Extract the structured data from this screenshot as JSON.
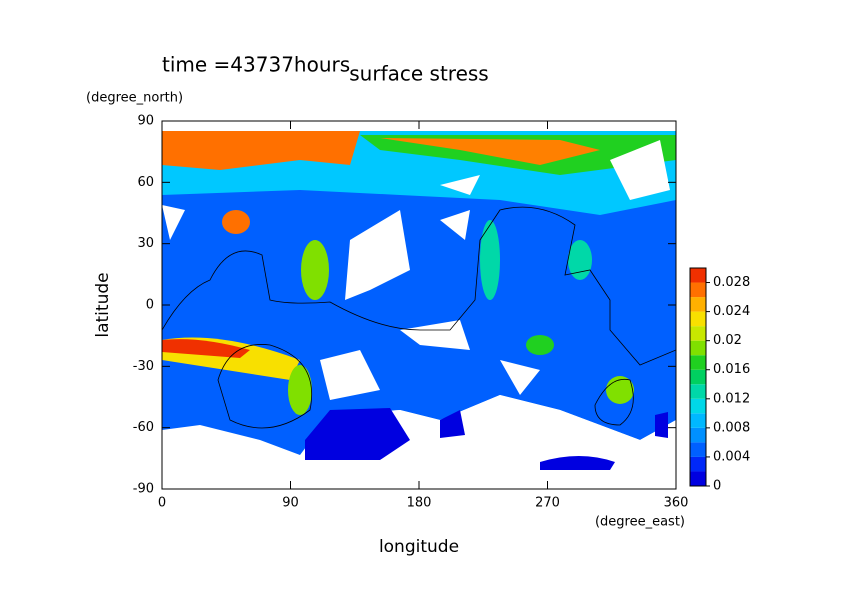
{
  "chart_data": {
    "type": "contour",
    "title": "surface stress",
    "subtitle": "time =43737hours",
    "x_label": "longitude",
    "x_unit": "(degree_east)",
    "y_label": "latitude",
    "y_unit": "(degree_north)",
    "xlim": [
      0,
      360
    ],
    "xticks": [
      0,
      90,
      180,
      270,
      360
    ],
    "ylim": [
      -90,
      90
    ],
    "yticks": [
      -90,
      -60,
      -30,
      0,
      30,
      60,
      90
    ],
    "clim": [
      0,
      0.03
    ],
    "cticks": [
      0,
      0.004,
      0.008,
      0.012,
      0.016,
      0.02,
      0.024,
      0.028
    ],
    "colors": [
      "#0000e0",
      "#0028f8",
      "#0060ff",
      "#0090ff",
      "#00b8ff",
      "#00d8e8",
      "#00d8a8",
      "#00d060",
      "#20d020",
      "#80e000",
      "#c8e800",
      "#f8e000",
      "#ffb000",
      "#ff7000",
      "#f03000"
    ]
  }
}
